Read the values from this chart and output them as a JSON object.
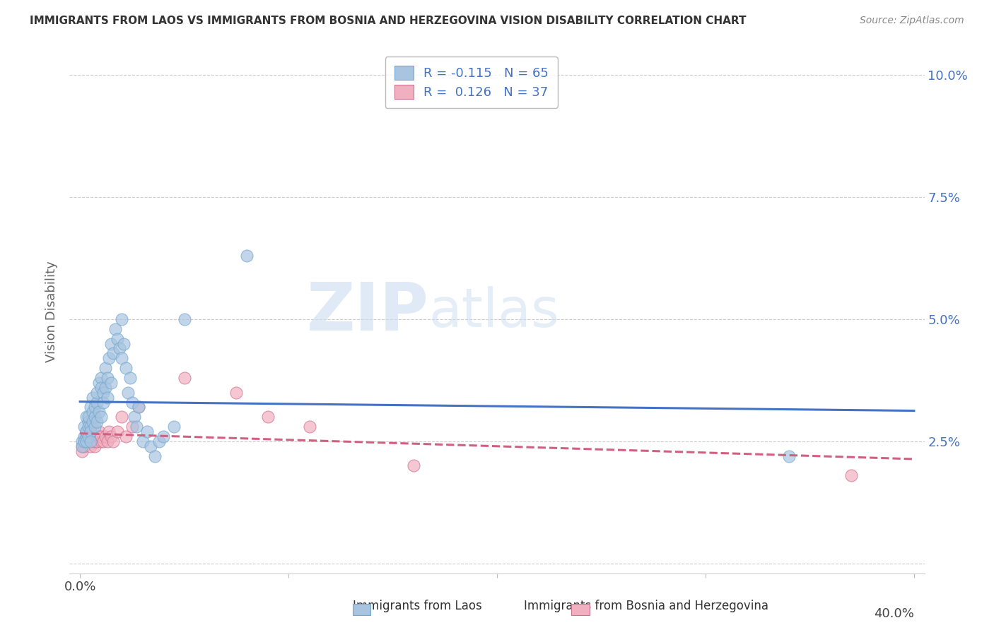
{
  "title": "IMMIGRANTS FROM LAOS VS IMMIGRANTS FROM BOSNIA AND HERZEGOVINA VISION DISABILITY CORRELATION CHART",
  "source": "Source: ZipAtlas.com",
  "ylabel": "Vision Disability",
  "xlabel_laos": "Immigrants from Laos",
  "xlabel_bosnia": "Immigrants from Bosnia and Herzegovina",
  "xlim": [
    -0.005,
    0.405
  ],
  "ylim": [
    -0.002,
    0.105
  ],
  "xticks": [
    0.0,
    0.1,
    0.2,
    0.3,
    0.4
  ],
  "yticks": [
    0.0,
    0.025,
    0.05,
    0.075,
    0.1
  ],
  "ytick_labels_right": [
    "",
    "2.5%",
    "5.0%",
    "7.5%",
    "10.0%"
  ],
  "xtick_labels": [
    "0.0%",
    "",
    "",
    "",
    ""
  ],
  "xtick_right_label": "40.0%",
  "color_laos": "#a8c4e0",
  "color_laos_edge": "#6fa8d0",
  "color_bosnia": "#f0b0c0",
  "color_bosnia_edge": "#d07090",
  "color_laos_line": "#4472c4",
  "color_bosnia_line": "#d06080",
  "watermark_zip": "ZIP",
  "watermark_atlas": "atlas",
  "background_color": "#ffffff",
  "laos_x": [
    0.001,
    0.001,
    0.002,
    0.002,
    0.002,
    0.003,
    0.003,
    0.003,
    0.003,
    0.003,
    0.004,
    0.004,
    0.004,
    0.004,
    0.005,
    0.005,
    0.005,
    0.005,
    0.006,
    0.006,
    0.006,
    0.007,
    0.007,
    0.007,
    0.008,
    0.008,
    0.008,
    0.009,
    0.009,
    0.01,
    0.01,
    0.01,
    0.011,
    0.011,
    0.012,
    0.012,
    0.013,
    0.013,
    0.014,
    0.015,
    0.015,
    0.016,
    0.017,
    0.018,
    0.019,
    0.02,
    0.02,
    0.021,
    0.022,
    0.023,
    0.024,
    0.025,
    0.026,
    0.027,
    0.028,
    0.03,
    0.032,
    0.034,
    0.036,
    0.038,
    0.04,
    0.045,
    0.05,
    0.08,
    0.34
  ],
  "laos_y": [
    0.025,
    0.024,
    0.026,
    0.025,
    0.028,
    0.026,
    0.027,
    0.025,
    0.027,
    0.03,
    0.029,
    0.028,
    0.026,
    0.03,
    0.032,
    0.028,
    0.027,
    0.025,
    0.034,
    0.031,
    0.029,
    0.028,
    0.03,
    0.032,
    0.033,
    0.035,
    0.029,
    0.037,
    0.031,
    0.038,
    0.036,
    0.03,
    0.035,
    0.033,
    0.04,
    0.036,
    0.038,
    0.034,
    0.042,
    0.045,
    0.037,
    0.043,
    0.048,
    0.046,
    0.044,
    0.05,
    0.042,
    0.045,
    0.04,
    0.035,
    0.038,
    0.033,
    0.03,
    0.028,
    0.032,
    0.025,
    0.027,
    0.024,
    0.022,
    0.025,
    0.026,
    0.028,
    0.05,
    0.063,
    0.022
  ],
  "bosnia_x": [
    0.001,
    0.001,
    0.002,
    0.002,
    0.003,
    0.003,
    0.004,
    0.004,
    0.005,
    0.005,
    0.006,
    0.006,
    0.007,
    0.007,
    0.008,
    0.008,
    0.009,
    0.009,
    0.01,
    0.01,
    0.011,
    0.012,
    0.013,
    0.014,
    0.015,
    0.016,
    0.018,
    0.02,
    0.022,
    0.025,
    0.028,
    0.05,
    0.075,
    0.09,
    0.11,
    0.16,
    0.37
  ],
  "bosnia_y": [
    0.024,
    0.023,
    0.025,
    0.024,
    0.026,
    0.025,
    0.027,
    0.025,
    0.026,
    0.024,
    0.025,
    0.026,
    0.024,
    0.025,
    0.026,
    0.025,
    0.027,
    0.026,
    0.025,
    0.026,
    0.025,
    0.026,
    0.025,
    0.027,
    0.026,
    0.025,
    0.027,
    0.03,
    0.026,
    0.028,
    0.032,
    0.038,
    0.035,
    0.03,
    0.028,
    0.02,
    0.018
  ]
}
